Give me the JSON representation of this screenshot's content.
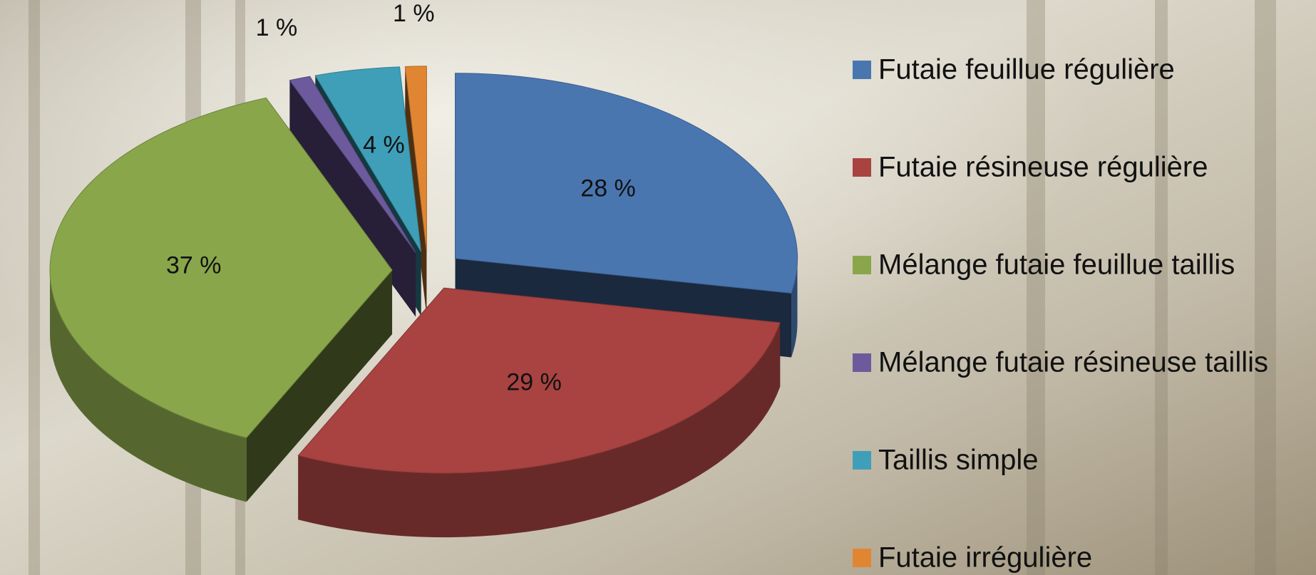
{
  "chart_data": {
    "type": "pie",
    "categories": [
      "Futaie feuillue régulière",
      "Futaie résineuse régulière",
      "Mélange futaie feuillue taillis",
      "Mélange futaie résineuse taillis",
      "Taillis simple",
      "Futaie irrégulière"
    ],
    "values": [
      28,
      29,
      37,
      1,
      4,
      1
    ],
    "value_labels": [
      "28 %",
      "29 %",
      "37 %",
      "1 %",
      "4 %",
      "1 %"
    ],
    "colors": [
      "#4a76b0",
      "#a84341",
      "#89a64b",
      "#6d5a9c",
      "#3f9fb8",
      "#e08632"
    ],
    "legend": "right"
  }
}
